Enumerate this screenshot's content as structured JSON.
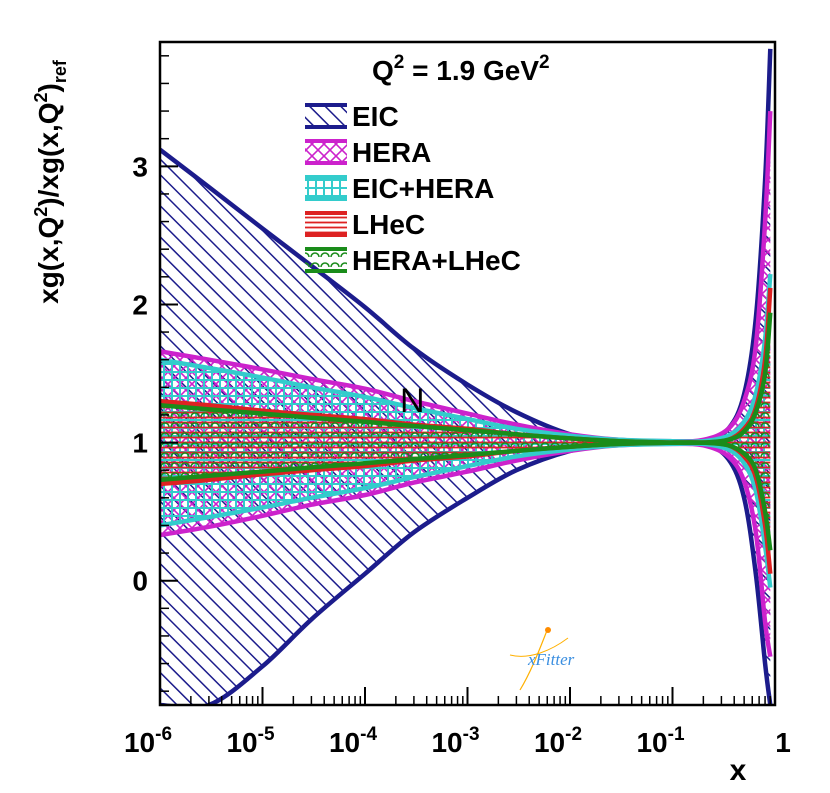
{
  "chart_data": {
    "type": "area",
    "title": "Q² = 1.9 GeV²",
    "title_parts": {
      "lhs": "Q",
      "exp1": "2",
      "mid": " = 1.9 GeV",
      "exp2": "2"
    },
    "ylabel_parts": [
      "xg(x,Q",
      "2",
      ")/xg(x,Q",
      "2",
      ")",
      "ref"
    ],
    "xlabel": "x",
    "x_scale": "log",
    "xlim": [
      1e-06,
      1
    ],
    "ylim": [
      -0.9,
      3.9
    ],
    "x_ticks": [
      {
        "value": 1e-06,
        "base": "10",
        "exp": "-6"
      },
      {
        "value": 1e-05,
        "base": "10",
        "exp": "-5"
      },
      {
        "value": 0.0001,
        "base": "10",
        "exp": "-4"
      },
      {
        "value": 0.001,
        "base": "10",
        "exp": "-3"
      },
      {
        "value": 0.01,
        "base": "10",
        "exp": "-2"
      },
      {
        "value": 0.1,
        "base": "10",
        "exp": "-1"
      },
      {
        "value": 1,
        "base": "1",
        "exp": ""
      }
    ],
    "y_ticks": [
      0,
      1,
      2,
      3
    ],
    "legend_position": "top-center",
    "watermark": "xFitter",
    "annotation": "N",
    "x": [
      1e-06,
      3e-06,
      1e-05,
      3e-05,
      0.0001,
      0.0003,
      0.001,
      0.003,
      0.01,
      0.03,
      0.1,
      0.2,
      0.35,
      0.5,
      0.65,
      0.8,
      0.9
    ],
    "series": [
      {
        "name": "EIC",
        "color": "#1c1c8c",
        "fill": "hatch-diagonal",
        "upper": [
          3.12,
          2.85,
          2.55,
          2.28,
          1.98,
          1.68,
          1.42,
          1.22,
          1.06,
          1.0,
          1.0,
          1.0,
          1.1,
          1.35,
          1.9,
          2.9,
          3.85
        ],
        "lower": [
          -0.9,
          -0.9,
          -0.62,
          -0.28,
          0.05,
          0.35,
          0.6,
          0.8,
          0.94,
          1.0,
          1.0,
          1.0,
          0.88,
          0.6,
          0.05,
          -0.6,
          -0.9
        ]
      },
      {
        "name": "HERA",
        "color": "#cc22cc",
        "fill": "hatch-cross",
        "upper": [
          1.66,
          1.6,
          1.53,
          1.46,
          1.39,
          1.3,
          1.21,
          1.13,
          1.06,
          1.02,
          1.01,
          1.02,
          1.1,
          1.3,
          1.7,
          2.6,
          3.4
        ],
        "lower": [
          0.33,
          0.39,
          0.47,
          0.55,
          0.62,
          0.71,
          0.79,
          0.87,
          0.94,
          0.98,
          0.99,
          0.98,
          0.9,
          0.72,
          0.35,
          -0.3,
          -0.55
        ]
      },
      {
        "name": "EIC+HERA",
        "color": "#33cccc",
        "fill": "hatch-grid",
        "upper": [
          1.6,
          1.54,
          1.47,
          1.4,
          1.33,
          1.25,
          1.17,
          1.1,
          1.05,
          1.02,
          1.01,
          1.01,
          1.05,
          1.15,
          1.35,
          1.75,
          2.22
        ],
        "lower": [
          0.4,
          0.46,
          0.53,
          0.6,
          0.67,
          0.75,
          0.83,
          0.9,
          0.95,
          0.98,
          0.99,
          0.99,
          0.95,
          0.85,
          0.65,
          0.25,
          -0.05
        ]
      },
      {
        "name": "LHeC",
        "color": "#dd2222",
        "fill": "hatch-horizontal",
        "upper": [
          1.3,
          1.27,
          1.23,
          1.2,
          1.17,
          1.13,
          1.1,
          1.06,
          1.03,
          1.01,
          1.0,
          1.0,
          1.02,
          1.1,
          1.25,
          1.6,
          2.12
        ],
        "lower": [
          0.7,
          0.73,
          0.77,
          0.8,
          0.83,
          0.87,
          0.9,
          0.94,
          0.97,
          0.99,
          1.0,
          1.0,
          0.98,
          0.9,
          0.75,
          0.4,
          0.05
        ]
      },
      {
        "name": "HERA+LHeC",
        "color": "#1a8c1a",
        "fill": "hatch-arc",
        "upper": [
          1.27,
          1.24,
          1.21,
          1.18,
          1.15,
          1.12,
          1.09,
          1.06,
          1.03,
          1.01,
          1.0,
          1.0,
          1.02,
          1.08,
          1.22,
          1.5,
          1.94
        ],
        "lower": [
          0.73,
          0.76,
          0.79,
          0.82,
          0.85,
          0.88,
          0.91,
          0.94,
          0.97,
          0.99,
          1.0,
          1.0,
          0.98,
          0.92,
          0.8,
          0.5,
          0.22
        ]
      }
    ]
  }
}
